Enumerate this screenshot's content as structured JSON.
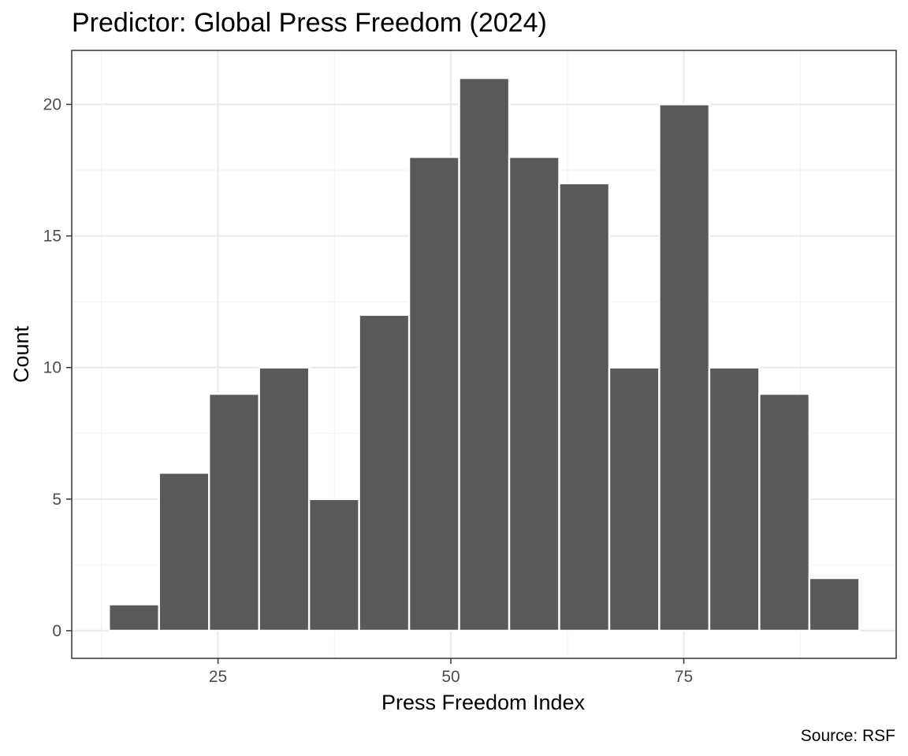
{
  "chart_data": {
    "type": "bar",
    "subtype": "histogram",
    "title": "Predictor: Global Press Freedom (2024)",
    "xlabel": "Press Freedom Index",
    "ylabel": "Count",
    "caption": "Source: RSF",
    "bin_width": 5.37,
    "bins": [
      {
        "start": 13.3,
        "end": 18.67,
        "count": 1
      },
      {
        "start": 18.67,
        "end": 24.04,
        "count": 6
      },
      {
        "start": 24.04,
        "end": 29.41,
        "count": 9
      },
      {
        "start": 29.41,
        "end": 34.78,
        "count": 10
      },
      {
        "start": 34.78,
        "end": 40.15,
        "count": 5
      },
      {
        "start": 40.15,
        "end": 45.52,
        "count": 12
      },
      {
        "start": 45.52,
        "end": 50.89,
        "count": 18
      },
      {
        "start": 50.89,
        "end": 56.26,
        "count": 21
      },
      {
        "start": 56.26,
        "end": 61.63,
        "count": 18
      },
      {
        "start": 61.63,
        "end": 67.0,
        "count": 17
      },
      {
        "start": 67.0,
        "end": 72.37,
        "count": 10
      },
      {
        "start": 72.37,
        "end": 77.74,
        "count": 20
      },
      {
        "start": 77.74,
        "end": 83.11,
        "count": 10
      },
      {
        "start": 83.11,
        "end": 88.48,
        "count": 9
      },
      {
        "start": 88.48,
        "end": 93.85,
        "count": 2
      }
    ],
    "xlim": [
      9.3,
      97.8
    ],
    "ylim": [
      -1.05,
      22.05
    ],
    "x_ticks": [
      25,
      50,
      75
    ],
    "y_ticks": [
      0,
      5,
      10,
      15,
      20
    ],
    "grid": true,
    "legend": "none",
    "colors": {
      "bar_fill": "#595959",
      "bar_outline": "#ffffff",
      "panel_border": "#333333",
      "grid_major": "#ebebeb",
      "grid_minor": "#f3f3f3",
      "tick_label": "#4d4d4d"
    }
  }
}
